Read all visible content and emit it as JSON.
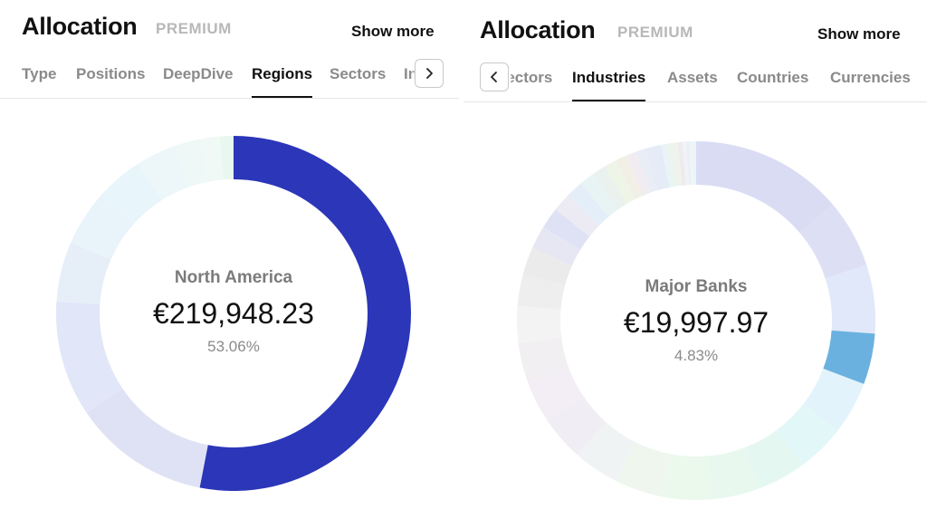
{
  "left": {
    "title": "Allocation",
    "badge": "PREMIUM",
    "show_more": "Show more",
    "tabs": [
      "Type",
      "Positions",
      "DeepDive",
      "Regions",
      "Sectors",
      "In"
    ],
    "active_tab": "Regions",
    "center": {
      "label": "North America",
      "value": "€219,948.23",
      "percent": "53.06%"
    },
    "chart_data": {
      "type": "pie",
      "highlight": "North America",
      "slices_percent": [
        53.06,
        12.5,
        10.5,
        5.5,
        5.0,
        4.4,
        3.6,
        2.4,
        1.8,
        1.24
      ],
      "colors": [
        "#2b36b8",
        "#dfe2f4",
        "#e1e6f8",
        "#e6eef8",
        "#e9f3fa",
        "#e8f5fa",
        "#edf7fa",
        "#eef8f6",
        "#f0f9f5",
        "#e9f8ef"
      ]
    }
  },
  "right": {
    "title": "Allocation",
    "badge": "PREMIUM",
    "show_more": "Show more",
    "tabs": [
      "Sectors",
      "Industries",
      "Assets",
      "Countries",
      "Currencies"
    ],
    "active_tab": "Industries",
    "center": {
      "label": "Major Banks",
      "value": "€19,997.97",
      "percent": "4.83%"
    },
    "chart_data": {
      "type": "pie",
      "highlight": "Major Banks",
      "slices_percent": [
        14.5,
        6.5,
        6.5,
        4.83,
        5.0,
        4.6,
        4.6,
        4.6,
        4.6,
        4.6,
        4.4,
        4.2,
        4.0,
        3.8,
        3.5,
        3.0,
        2.6,
        2.2,
        2.0,
        1.8,
        1.6,
        1.4,
        1.3,
        1.2,
        1.1,
        1.0,
        0.9,
        0.8,
        0.7,
        0.6,
        0.5,
        0.5,
        0.4,
        0.4,
        0.3,
        0.3,
        0.3
      ],
      "colors": [
        "#d9dcf3",
        "#dde0f4",
        "#e1e8f9",
        "#6ab1e0",
        "#e3f3fb",
        "#e2f7f8",
        "#e4f8f1",
        "#e8f8ef",
        "#ebf8ec",
        "#eef6ee",
        "#f0f3f4",
        "#f0edf4",
        "#f3eef5",
        "#f1eff2",
        "#f3f3f3",
        "#eeeeee",
        "#ebebeb",
        "#e6e7f3",
        "#dfe2f5",
        "#eceaf3",
        "#e4eef8",
        "#e7f4f3",
        "#eaf1ef",
        "#eef4e6",
        "#f2f0e6",
        "#f0ecf2",
        "#e9edf6",
        "#e7eaf7",
        "#e3ecf7",
        "#eaf4f6",
        "#edf4ed",
        "#f1f1ee",
        "#ececec",
        "#f1f1f7",
        "#e9eff7",
        "#eef6f3",
        "#e9f5fa"
      ]
    }
  }
}
